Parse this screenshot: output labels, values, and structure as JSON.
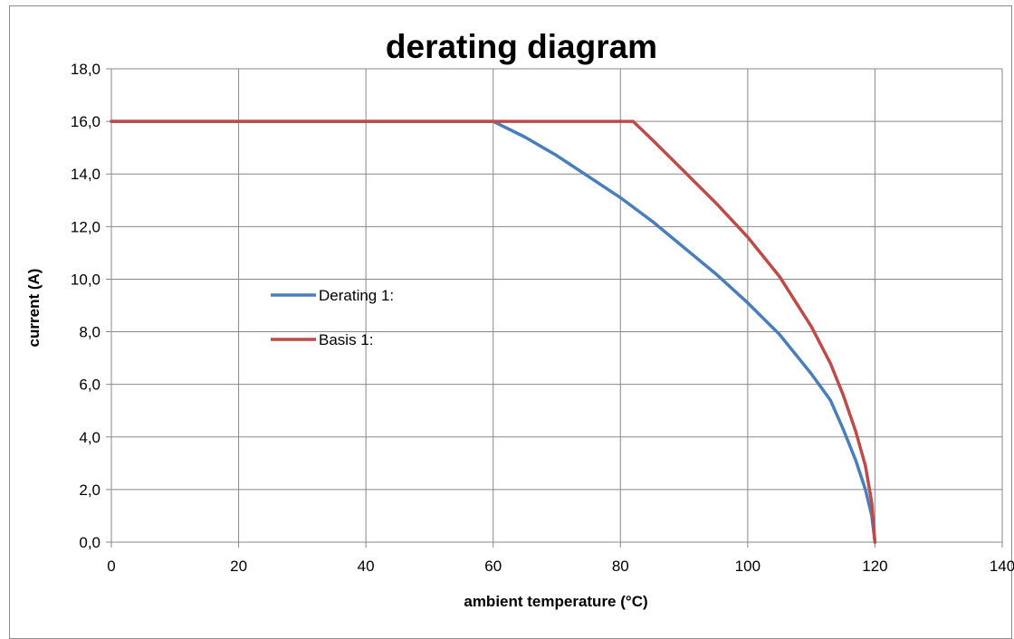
{
  "chart_data": {
    "type": "line",
    "title": "derating diagram",
    "xlabel": "ambient temperature (°C)",
    "ylabel": "current (A)",
    "xlim": [
      0,
      140
    ],
    "ylim": [
      0,
      18
    ],
    "x_ticks": [
      0,
      20,
      40,
      60,
      80,
      100,
      120,
      140
    ],
    "x_tick_labels": [
      "0",
      "20",
      "40",
      "60",
      "80",
      "100",
      "120",
      "140"
    ],
    "y_ticks": [
      0,
      2,
      4,
      6,
      8,
      10,
      12,
      14,
      16,
      18
    ],
    "y_tick_labels": [
      "0,0",
      "2,0",
      "4,0",
      "6,0",
      "8,0",
      "10,0",
      "12,0",
      "14,0",
      "16,0",
      "18,0"
    ],
    "grid": true,
    "legend_position": "center-left",
    "series": [
      {
        "name": "Derating 1:",
        "color": "#4a7ebb",
        "points": [
          [
            0,
            16.0
          ],
          [
            60,
            16.0
          ],
          [
            65,
            15.4
          ],
          [
            70,
            14.7
          ],
          [
            75,
            13.9
          ],
          [
            80,
            13.1
          ],
          [
            85,
            12.2
          ],
          [
            90,
            11.2
          ],
          [
            95,
            10.2
          ],
          [
            100,
            9.1
          ],
          [
            105,
            7.9
          ],
          [
            110,
            6.4
          ],
          [
            113,
            5.4
          ],
          [
            115,
            4.3
          ],
          [
            117,
            3.1
          ],
          [
            118.5,
            2.0
          ],
          [
            119.5,
            1.0
          ],
          [
            120,
            0.0
          ]
        ]
      },
      {
        "name": "Basis 1:",
        "color": "#be4b48",
        "points": [
          [
            0,
            16.0
          ],
          [
            82,
            16.0
          ],
          [
            85,
            15.3
          ],
          [
            90,
            14.1
          ],
          [
            95,
            12.9
          ],
          [
            100,
            11.6
          ],
          [
            105,
            10.1
          ],
          [
            110,
            8.2
          ],
          [
            113,
            6.8
          ],
          [
            115,
            5.6
          ],
          [
            117,
            4.2
          ],
          [
            118.5,
            2.9
          ],
          [
            119.5,
            1.5
          ],
          [
            120,
            0.0
          ]
        ]
      }
    ]
  }
}
